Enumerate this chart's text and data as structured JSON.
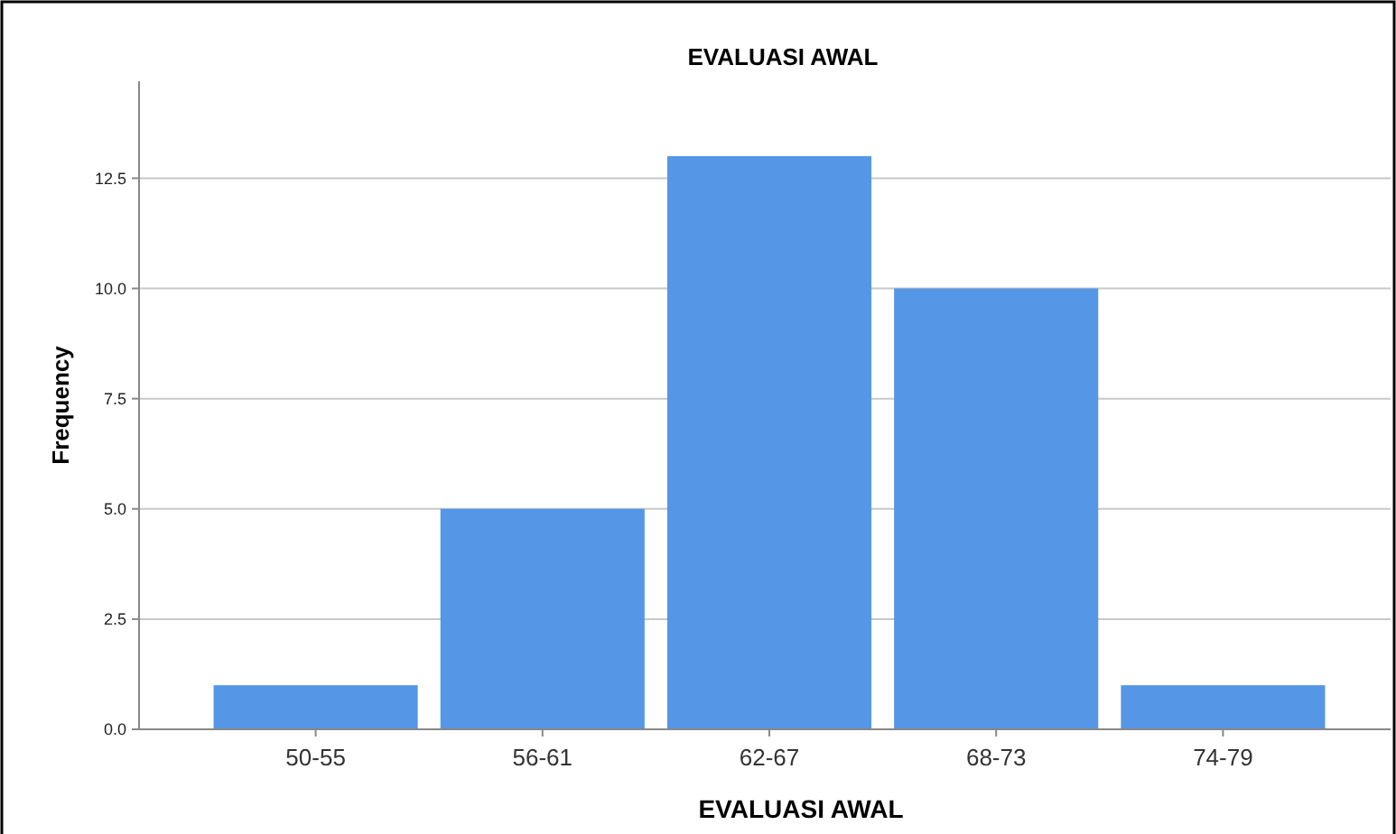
{
  "chart_data": {
    "type": "bar",
    "title": "EVALUASI AWAL",
    "xlabel": "EVALUASI AWAL",
    "ylabel": "Frequency",
    "categories": [
      "50-55",
      "56-61",
      "62-67",
      "68-73",
      "74-79"
    ],
    "values": [
      1,
      5,
      13,
      10,
      1
    ],
    "color": "#5596e6",
    "ylim": [
      0,
      14.7
    ],
    "yticks": [
      {
        "value": 0,
        "label": "0.0"
      },
      2.5,
      {
        "value": 5,
        "label": "5.0"
      },
      7.5,
      {
        "value": 10,
        "label": "10.0"
      },
      12.5
    ],
    "grid": "y"
  }
}
